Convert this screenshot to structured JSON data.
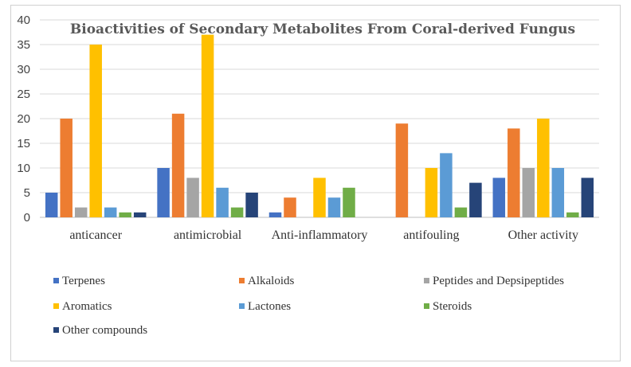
{
  "chart_data": {
    "type": "bar",
    "title": "Bioactivities of Secondary Metabolites From Coral-derived Fungus",
    "categories": [
      "anticancer",
      "antimicrobial",
      "Anti-inflammatory",
      "antifouling",
      "Other activity"
    ],
    "series": [
      {
        "name": "Terpenes",
        "color": "#4472C4",
        "values": [
          5,
          10,
          1,
          0,
          8
        ]
      },
      {
        "name": "Alkaloids",
        "color": "#ED7D31",
        "values": [
          20,
          21,
          4,
          19,
          18
        ]
      },
      {
        "name": "Peptides and Depsipeptides",
        "color": "#A5A5A5",
        "values": [
          2,
          8,
          0,
          0,
          10
        ]
      },
      {
        "name": "Aromatics",
        "color": "#FFC000",
        "values": [
          35,
          37,
          8,
          10,
          20
        ]
      },
      {
        "name": "Lactones",
        "color": "#5B9BD5",
        "values": [
          2,
          6,
          4,
          13,
          10
        ]
      },
      {
        "name": "Steroids",
        "color": "#70AD47",
        "values": [
          1,
          2,
          6,
          2,
          1
        ]
      },
      {
        "name": "Other compounds",
        "color": "#264478",
        "values": [
          1,
          5,
          0,
          7,
          8
        ]
      }
    ],
    "ylim": [
      0,
      40
    ],
    "yticks": [
      0,
      5,
      10,
      15,
      20,
      25,
      30,
      35,
      40
    ],
    "grid": true,
    "legend": "bottom"
  }
}
